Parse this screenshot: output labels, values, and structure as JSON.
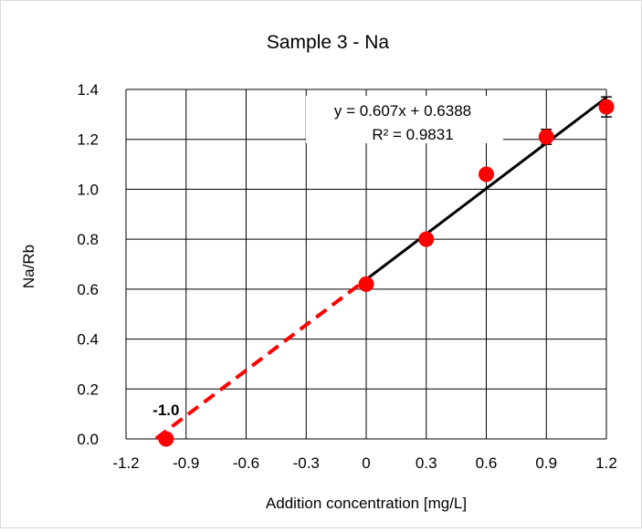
{
  "chart_data": {
    "type": "scatter",
    "title": "Sample 3 - Na",
    "xlabel": "Addition concentration [mg/L]",
    "ylabel": "Na/Rb",
    "xlim": [
      -1.2,
      1.2
    ],
    "ylim": [
      0.0,
      1.4
    ],
    "x_ticks": [
      -1.2,
      -0.9,
      -0.6,
      -0.3,
      0,
      0.3,
      0.6,
      0.9,
      1.2
    ],
    "x_tick_labels": [
      "-1.2",
      "-0.9",
      "-0.6",
      "-0.3",
      "0",
      "0.3",
      "0.6",
      "0.9",
      "1.2"
    ],
    "y_ticks": [
      0.0,
      0.2,
      0.4,
      0.6,
      0.8,
      1.0,
      1.2,
      1.4
    ],
    "y_tick_labels": [
      "0.0",
      "0.2",
      "0.4",
      "0.6",
      "0.8",
      "1.0",
      "1.2",
      "1.4"
    ],
    "grid": true,
    "series": [
      {
        "x": [
          0,
          0.3,
          0.6,
          0.9,
          1.2
        ],
        "y": [
          0.62,
          0.8,
          1.06,
          1.21,
          1.33
        ],
        "y_err": [
          0.01,
          0.01,
          0.01,
          0.03,
          0.04
        ],
        "color": "#ff0000"
      },
      {
        "x": [
          -1.0
        ],
        "y": [
          0.0
        ],
        "color": "#ff0000"
      }
    ],
    "fit": {
      "slope": 0.607,
      "intercept": 0.6388,
      "x_range": [
        0,
        1.2
      ],
      "color": "#000000",
      "equation": "y = 0.607x + 0.6388",
      "r2": "R² = 0.9831"
    },
    "extrapolation": {
      "x_range": [
        -1.05,
        0
      ],
      "color": "#ff0000",
      "style": "dashed"
    },
    "annotations": [
      {
        "text": "-1.0",
        "x": -1.0,
        "y": 0.0
      }
    ]
  }
}
